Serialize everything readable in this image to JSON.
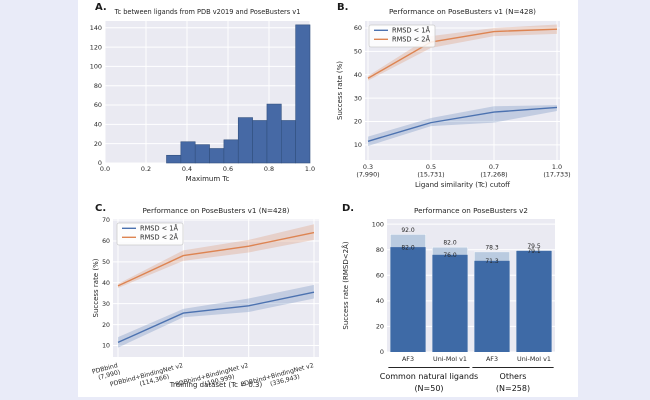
{
  "page": {
    "background": "#e9ebf8",
    "figure_background": "#ffffff"
  },
  "colors": {
    "plot_bg": "#eaeaf2",
    "grid": "#ffffff",
    "text": "#262626",
    "blue": "#4c72b0",
    "orange": "#dd8452",
    "hist_fill": "#4669a5",
    "hist_edge": "#314f7d",
    "bar_dark": "#3e6aa6",
    "bar_light": "#bacbe0",
    "legend_border": "#cccccc"
  },
  "panels": {
    "a": {
      "label": "A."
    },
    "b": {
      "label": "B."
    },
    "c": {
      "label": "C."
    },
    "d": {
      "label": "D."
    }
  },
  "chart_data": [
    {
      "id": "a",
      "type": "bar",
      "subtype": "histogram",
      "title": "Tc between ligands from PDB v2019 and PoseBusters v1",
      "xlabel": "Maximum Tc",
      "ylabel": "",
      "bin_start": 0.3,
      "bin_width": 0.07,
      "values": [
        8,
        22,
        19,
        15,
        24,
        47,
        44,
        61,
        44,
        143
      ],
      "xlim": [
        0.0,
        1.0
      ],
      "ylim": [
        0,
        147
      ],
      "xticks": [
        "0.0",
        "0.2",
        "0.4",
        "0.6",
        "0.8",
        "1.0"
      ],
      "yticks": [
        0,
        20,
        40,
        60,
        80,
        100,
        120,
        140
      ],
      "grid": true
    },
    {
      "id": "b",
      "type": "line",
      "title": "Performance on PoseBusters v1 (N=428)",
      "xlabel": "Ligand similarity (Tc) cutoff",
      "ylabel": "Success rate (%)",
      "x_tick_labels": [
        [
          "0.3",
          "(7,990)"
        ],
        [
          "0.5",
          "(15,731)"
        ],
        [
          "0.7",
          "(17,268)"
        ],
        [
          "1.0",
          "(17,733)"
        ]
      ],
      "series": [
        {
          "name": "RMSD < 1Å",
          "color_key": "blue",
          "values": [
            11.5,
            19.5,
            24,
            26
          ],
          "band_lower": [
            9.5,
            18,
            19.5,
            24.5
          ],
          "band_upper": [
            13.5,
            21.5,
            26.5,
            27
          ]
        },
        {
          "name": "RMSD < 2Å",
          "color_key": "orange",
          "values": [
            38.5,
            54,
            58.5,
            59.5
          ],
          "band_lower": [
            37.5,
            51.5,
            56.5,
            57.5
          ],
          "band_upper": [
            39.5,
            56.5,
            60,
            61.5
          ]
        }
      ],
      "ylim": [
        3.5,
        63
      ],
      "yticks": [
        10,
        20,
        30,
        40,
        50,
        60
      ],
      "legend_position": "upper left",
      "grid": true
    },
    {
      "id": "c",
      "type": "line",
      "title": "Performance on PoseBusters v1 (N=428)",
      "xlabel": "Training dataset (Tc = 0.3)",
      "ylabel": "Success rate (%)",
      "x_tick_labels": [
        [
          "PDBbind",
          "(7,990)"
        ],
        [
          "PDBbind+BindingNet v2",
          "(114,366)"
        ],
        [
          "PDBbind+BindingNet v2",
          "(190,999)"
        ],
        [
          "PDBbind+BindingNet v2",
          "(336,943)"
        ]
      ],
      "x_tick_rotation": -15,
      "series": [
        {
          "name": "RMSD < 1Å",
          "color_key": "blue",
          "values": [
            11.5,
            25.5,
            29,
            35.5
          ],
          "band_lower": [
            9,
            23.5,
            26,
            32.5
          ],
          "band_upper": [
            14,
            27.5,
            32.5,
            39
          ]
        },
        {
          "name": "RMSD < 2Å",
          "color_key": "orange",
          "values": [
            38.5,
            53,
            57.5,
            64
          ],
          "band_lower": [
            37.5,
            50.5,
            54.5,
            60.5
          ],
          "band_upper": [
            39.5,
            55.5,
            60.5,
            68
          ]
        }
      ],
      "ylim": [
        4.5,
        70.5
      ],
      "yticks": [
        10,
        20,
        30,
        40,
        50,
        60,
        70
      ],
      "legend_position": "upper left",
      "grid": true
    },
    {
      "id": "d",
      "type": "grouped_bar",
      "title": "Performance on PoseBusters v2",
      "xlabel": "",
      "ylabel": "Success rate (RMSD<2Å)",
      "categories": [
        "AF3",
        "Uni-Mol v1",
        "AF3",
        "Uni-Mol v1"
      ],
      "series": [
        {
          "name": "light",
          "color_key": "bar_light",
          "values": [
            92.0,
            82.0,
            78.3,
            79.5
          ]
        },
        {
          "name": "dark",
          "color_key": "bar_dark",
          "values": [
            82.0,
            76.0,
            71.3,
            79.1
          ]
        }
      ],
      "value_labels_top": [
        "92.0",
        "82.0",
        "78.3",
        "79.5"
      ],
      "value_labels_overlay": [
        "82.0",
        "76.0",
        "71.3",
        "79.1"
      ],
      "groups": [
        {
          "label": "Common natural ligands",
          "count": "(N=50)"
        },
        {
          "label": "Others",
          "count": "(N=258)"
        }
      ],
      "ylim": [
        0,
        104
      ],
      "yticks": [
        0,
        20,
        40,
        60,
        80,
        100
      ],
      "grid": true
    }
  ]
}
